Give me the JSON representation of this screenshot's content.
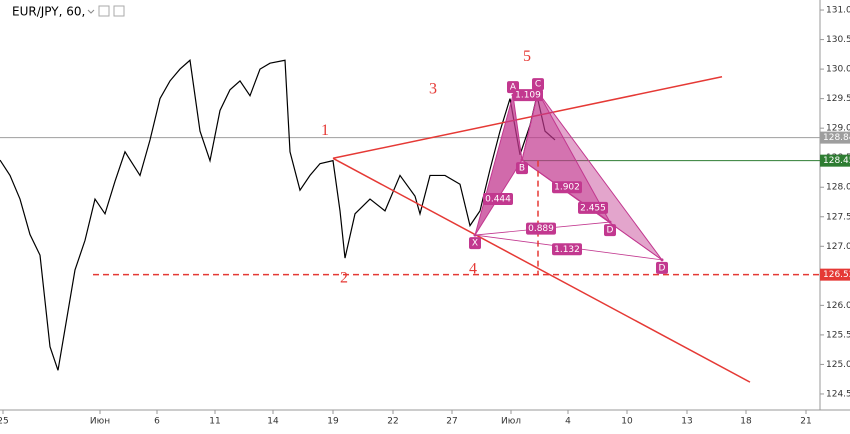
{
  "chart_data": {
    "type": "line",
    "symbol": "EUR/JPY, 60,",
    "x": [
      0,
      2,
      4,
      6,
      8,
      10,
      11.6,
      13,
      15,
      17,
      19,
      21,
      23,
      25,
      28,
      30,
      32,
      34,
      36,
      38,
      40,
      42,
      44,
      46,
      48,
      50,
      52,
      54,
      57,
      58,
      60,
      62,
      64,
      66.6,
      68,
      69,
      71,
      74,
      77,
      80,
      83,
      84,
      86,
      89,
      92,
      94,
      96,
      98,
      100,
      102,
      104,
      106,
      107.4,
      109,
      111
    ],
    "values": [
      128.46,
      128.2,
      127.8,
      127.2,
      126.85,
      125.3,
      124.9,
      125.6,
      126.6,
      127.1,
      127.8,
      127.55,
      128.1,
      128.6,
      128.2,
      128.8,
      129.5,
      129.8,
      130.0,
      130.15,
      128.95,
      128.45,
      129.3,
      129.65,
      129.8,
      129.55,
      130.0,
      130.1,
      130.15,
      128.6,
      127.95,
      128.2,
      128.4,
      128.45,
      127.6,
      126.8,
      127.55,
      127.8,
      127.6,
      128.2,
      127.85,
      127.55,
      128.2,
      128.2,
      128.05,
      127.35,
      127.6,
      128.3,
      128.95,
      129.5,
      128.55,
      129.05,
      129.55,
      128.95,
      128.8
    ],
    "color": "#000000",
    "xlim": [
      0,
      164
    ],
    "ylim": [
      124.33,
      131.17
    ],
    "xticks": [
      {
        "value": 0.6,
        "label": "25"
      },
      {
        "value": 20,
        "label": "Июн"
      },
      {
        "value": 31.4,
        "label": "6"
      },
      {
        "value": 43,
        "label": "11"
      },
      {
        "value": 54.6,
        "label": "14"
      },
      {
        "value": 66.6,
        "label": "19"
      },
      {
        "value": 78.6,
        "label": "22"
      },
      {
        "value": 90.4,
        "label": "27"
      },
      {
        "value": 102.2,
        "label": "Июл"
      },
      {
        "value": 113.6,
        "label": "4"
      },
      {
        "value": 125.4,
        "label": "10"
      },
      {
        "value": 137.4,
        "label": "13"
      },
      {
        "value": 149.2,
        "label": "18"
      },
      {
        "value": 161.2,
        "label": "21"
      }
    ],
    "yticks": [
      {
        "value": 131,
        "label": "131.00"
      },
      {
        "value": 130.5,
        "label": "130.50"
      },
      {
        "value": 130,
        "label": "130.00"
      },
      {
        "value": 129.5,
        "label": "129.50"
      },
      {
        "value": 129,
        "label": "129.00"
      },
      {
        "value": 128.5,
        "label": "128.50"
      },
      {
        "value": 128,
        "label": "128.00"
      },
      {
        "value": 127.5,
        "label": "127.50"
      },
      {
        "value": 127,
        "label": "127.00"
      },
      {
        "value": 126.5,
        "label": "126.50"
      },
      {
        "value": 126,
        "label": "126.00"
      },
      {
        "value": 125.5,
        "label": "125.50"
      },
      {
        "value": 125,
        "label": "125.00"
      },
      {
        "value": 124.5,
        "label": "124.50"
      }
    ],
    "levels": [
      {
        "value": 128.84,
        "color": "#9e9e9e",
        "dashed": false,
        "from": 0
      },
      {
        "value": 128.45,
        "color": "#2e7d32",
        "dashed": false,
        "from": 104.4
      },
      {
        "value": 126.52,
        "color": "#e53935",
        "dashed": true,
        "from": 18.6
      }
    ],
    "trend_lines": [
      {
        "x": [
          66.6,
          144.4
        ],
        "y": [
          128.49,
          129.87
        ]
      },
      {
        "x": [
          66.6,
          150
        ],
        "y": [
          128.49,
          124.7
        ]
      }
    ],
    "waves": [
      {
        "label": "1",
        "x": 65,
        "y": 128.95
      },
      {
        "label": "2",
        "x": 68.8,
        "y": 126.45
      },
      {
        "label": "3",
        "x": 86.6,
        "y": 129.65
      },
      {
        "label": "4",
        "x": 94.6,
        "y": 126.6
      },
      {
        "label": "5",
        "x": 105.4,
        "y": 130.2
      }
    ],
    "pattern": {
      "color": "#c2388f",
      "points": [
        {
          "label": "X",
          "x": 95,
          "y": 127.19
        },
        {
          "label": "A",
          "x": 102.6,
          "y": 129.56
        },
        {
          "label": "B",
          "x": 104.4,
          "y": 128.46
        },
        {
          "label": "C",
          "x": 107.6,
          "y": 129.61
        },
        {
          "label": "D",
          "x": 122,
          "y": 127.41
        },
        {
          "label": "D",
          "x": 132.4,
          "y": 126.77
        }
      ],
      "ratios": [
        {
          "ratio": 0.444,
          "x": 99.6,
          "y": 127.8
        },
        {
          "ratio": 1.109,
          "x": 105.6,
          "y": 129.56
        },
        {
          "ratio": 1.902,
          "x": 113.4,
          "y": 128.0
        },
        {
          "ratio": 2.455,
          "x": 118.6,
          "y": 127.65
        },
        {
          "ratio": 0.889,
          "x": 108.2,
          "y": 127.3
        },
        {
          "ratio": 1.132,
          "x": 113.4,
          "y": 126.95
        }
      ]
    }
  }
}
